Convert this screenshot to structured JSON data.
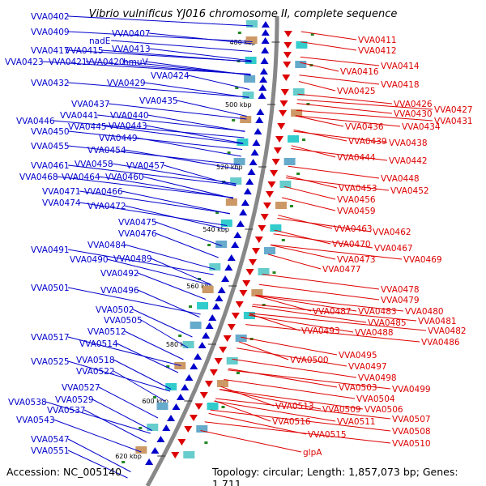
{
  "title": "Vibrio vulnificus YJ016 chromosome II, complete sequence",
  "accession": "Accession: NC_005140",
  "summary": "Topology: circular; Length: 1,857,073 bp; Genes: 1,711",
  "colors": {
    "forward": "#0000cc",
    "reverse": "#dd0000",
    "backbone": "#888888",
    "marker": "#228822"
  },
  "scale_ticks": [
    "480 kbp",
    "500 kbp",
    "520 kbp",
    "540 kbp",
    "560 kbp",
    "580 kbp",
    "600 kbp",
    "620 kbp"
  ],
  "forward_genes": [
    "VVA0402",
    "VVA0409",
    "VVA0407",
    "nadE",
    "VVA0417",
    "VVA0415",
    "VVA0413",
    "VVA0423",
    "VVA0421",
    "VVA0420",
    "hmuV",
    "VVA0424",
    "VVA0432",
    "VVA0429",
    "VVA0437",
    "VVA0435",
    "VVA0441",
    "VVA0440",
    "VVA0446",
    "VVA0445",
    "VVA0443",
    "VVA0450",
    "VVA0449",
    "VVA0455",
    "VVA0454",
    "VVA0461",
    "VVA0458",
    "VVA0457",
    "VVA0468",
    "VVA0464",
    "VVA0460",
    "VVA0471",
    "VVA0466",
    "VVA0474",
    "VVA0472",
    "VVA0475",
    "VVA0476",
    "VVA0484",
    "VVA0491",
    "VVA0490",
    "VVA0489",
    "VVA0492",
    "VVA0501",
    "VVA0496",
    "VVA0502",
    "VVA0505",
    "VVA0512",
    "VVA0517",
    "VVA0514",
    "VVA0518",
    "VVA0525",
    "VVA0522",
    "VVA0527",
    "VVA0529",
    "VVA0538",
    "VVA0537",
    "VVA0543",
    "VVA0547",
    "VVA0551"
  ],
  "reverse_genes": [
    "VVA0411",
    "VVA0412",
    "VVA0414",
    "VVA0416",
    "VVA0418",
    "VVA0425",
    "VVA0426",
    "VVA0427",
    "VVA0430",
    "VVA0431",
    "VVA0436",
    "VVA0434",
    "VVA0439",
    "VVA0438",
    "VVA0444",
    "VVA0442",
    "VVA0448",
    "VVA0453",
    "VVA0452",
    "VVA0456",
    "VVA0459",
    "VVA0463",
    "VVA0462",
    "VVA0470",
    "VVA0467",
    "VVA0473",
    "VVA0469",
    "VVA0477",
    "VVA0478",
    "VVA0479",
    "VVA0487",
    "VVA0483",
    "VVA0480",
    "VVA0485",
    "VVA0481",
    "VVA0493",
    "VVA0488",
    "VVA0482",
    "VVA0486",
    "VVA0495",
    "VVA0500",
    "VVA0497",
    "VVA0498",
    "VVA0503",
    "VVA0499",
    "VVA0504",
    "VVA0513",
    "VVA0509",
    "VVA0506",
    "VVA0511",
    "VVA0507",
    "VVA0516",
    "VVA0515",
    "VVA0508",
    "VVA0510",
    "glpA"
  ]
}
